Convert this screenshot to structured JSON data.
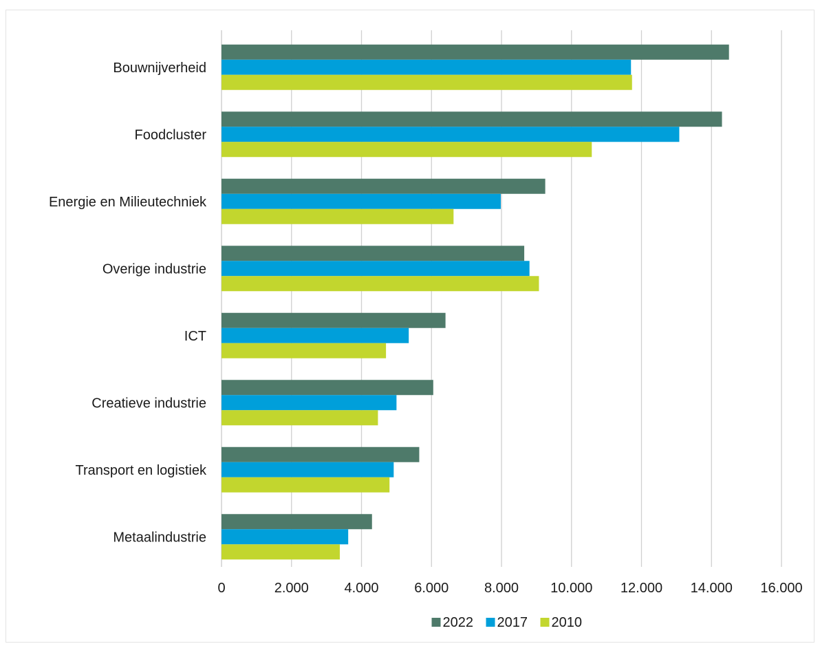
{
  "chart_data": {
    "type": "bar",
    "orientation": "horizontal",
    "title": "",
    "xlabel": "",
    "ylabel": "",
    "categories": [
      "Bouwnijverheid",
      "Foodcluster",
      "Energie en Milieutechniek",
      "Overige industrie",
      "ICT",
      "Creatieve industrie",
      "Transport en logistiek",
      "Metaalindustrie"
    ],
    "series": [
      {
        "name": "2022",
        "color": "#4e7a6a",
        "values": [
          14500,
          14300,
          9250,
          8650,
          6400,
          6050,
          5650,
          4300
        ]
      },
      {
        "name": "2017",
        "color": "#009fda",
        "values": [
          11700,
          13080,
          7980,
          8800,
          5350,
          5000,
          4920,
          3620
        ]
      },
      {
        "name": "2010",
        "color": "#c2d62e",
        "values": [
          11730,
          10580,
          6630,
          9070,
          4700,
          4470,
          4800,
          3380
        ]
      }
    ],
    "xlim": [
      0,
      16000
    ],
    "xticks": [
      0,
      2000,
      4000,
      6000,
      8000,
      10000,
      12000,
      14000,
      16000
    ],
    "xtick_labels": [
      "0",
      "2.000",
      "4.000",
      "6.000",
      "8.000",
      "10.000",
      "12.000",
      "14.000",
      "16.000"
    ],
    "grid": true,
    "legend_position": "bottom"
  }
}
